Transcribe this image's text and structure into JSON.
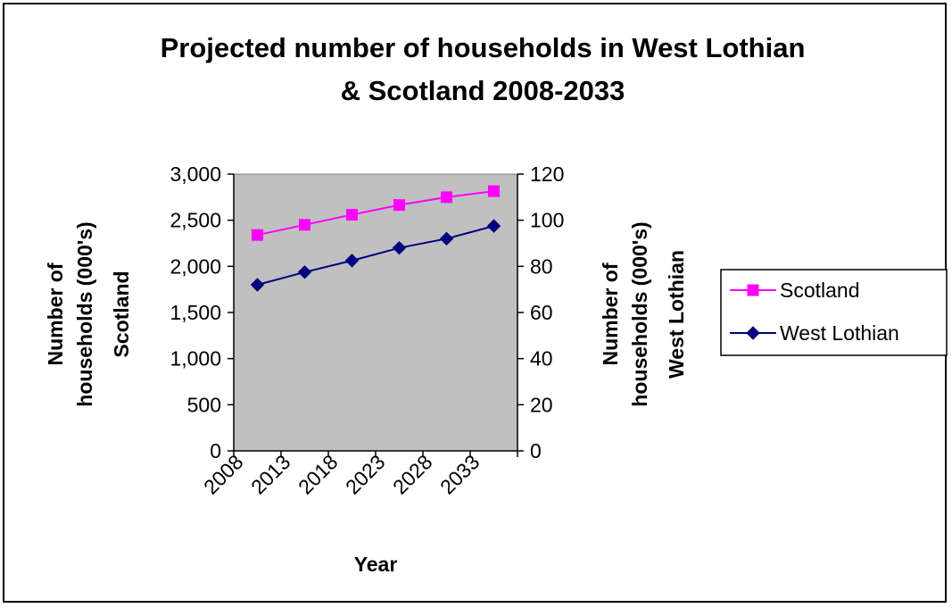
{
  "chart_data": {
    "type": "line",
    "title_line1": "Projected number of households in West Lothian",
    "title_line2": "& Scotland 2008-2033",
    "xlabel": "Year",
    "ylabel_left_line1": "Number of",
    "ylabel_left_line2": "households (000's)",
    "ylabel_left_line3": "Scotland",
    "ylabel_right_line1": "Number of",
    "ylabel_right_line2": "households (000's)",
    "ylabel_right_line3": "West Lothian",
    "x": [
      "2008",
      "2013",
      "2018",
      "2023",
      "2028",
      "2033"
    ],
    "y_left_ticks": [
      "0",
      "500",
      "1,000",
      "1,500",
      "2,000",
      "2,500",
      "3,000"
    ],
    "y_right_ticks": [
      "0",
      "20",
      "40",
      "60",
      "80",
      "100",
      "120"
    ],
    "ylim_left": [
      0,
      3000
    ],
    "ylim_right": [
      0,
      120
    ],
    "series": [
      {
        "name": "Scotland",
        "axis": "left",
        "color": "#ff00ff",
        "marker": "square",
        "values": [
          2340,
          2450,
          2560,
          2665,
          2750,
          2815
        ]
      },
      {
        "name": "West Lothian",
        "axis": "right",
        "color": "#000080",
        "marker": "diamond",
        "values": [
          72,
          77.5,
          82.5,
          88,
          92,
          97.5
        ]
      }
    ],
    "plot_background": "#c0c0c0",
    "legend_position": "right"
  }
}
